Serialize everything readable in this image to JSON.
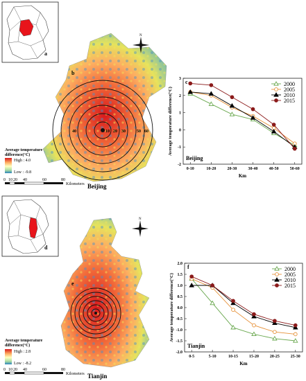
{
  "panels": {
    "a": "a",
    "b": "b",
    "c": "c",
    "d": "d",
    "e": "e",
    "f": "f"
  },
  "maps": {
    "beijing": {
      "city": "Beijing",
      "legend_title_line1": "Average temperature",
      "legend_title_line2": "difference(°C)",
      "high_label": "High : 4.0",
      "low_label": "Low : -9.8",
      "ring_labels": [
        "10",
        "20",
        "30",
        "40",
        "50",
        "60"
      ],
      "scale_ticks": [
        "0",
        "10",
        "20",
        "40",
        "60",
        "80"
      ],
      "scale_unit": "Kilometers",
      "colors": {
        "high": "#d7191c",
        "mid": "#fdae61",
        "low": "#2c7bb6"
      }
    },
    "tianjin": {
      "city": "Tianjin",
      "legend_title_line1": "Average temperature",
      "legend_title_line2": "difference(°C)",
      "high_label": "High : 2.8",
      "low_label": "Low : -8.2",
      "scale_ticks": [
        "0",
        "10",
        "20",
        "40",
        "60",
        "80"
      ],
      "scale_unit": "Kilometers"
    },
    "north_arrow_label": "N",
    "locator_fill": "#e8141b"
  },
  "chart_data": [
    {
      "type": "line",
      "panel": "c",
      "title": "Beijing",
      "xlabel": "Km",
      "ylabel": "Average temperature difference(°C)",
      "categories": [
        "0-10",
        "10-20",
        "20-30",
        "30-40",
        "40-50",
        "50-60"
      ],
      "ylim": [
        -2,
        3
      ],
      "yticks": [
        "-2",
        "-1",
        "0",
        "1",
        "2",
        "3"
      ],
      "legend_position": "top-right",
      "series": [
        {
          "name": "2000",
          "values": [
            2.1,
            1.5,
            0.9,
            0.6,
            -0.2,
            -0.9
          ],
          "color": "#6aa84f",
          "marker": "triangle-open"
        },
        {
          "name": "2005",
          "values": [
            2.2,
            2.0,
            1.3,
            0.8,
            0.1,
            -0.8
          ],
          "color": "#e69138",
          "marker": "circle-open"
        },
        {
          "name": "2010",
          "values": [
            2.2,
            2.1,
            1.4,
            0.7,
            -0.1,
            -1.0
          ],
          "color": "#000000",
          "marker": "triangle-filled"
        },
        {
          "name": "2015",
          "values": [
            2.7,
            2.6,
            1.9,
            1.2,
            0.3,
            -1.1
          ],
          "color": "#8b1a1a",
          "marker": "circle-filled"
        }
      ]
    },
    {
      "type": "line",
      "panel": "f",
      "title": "Tianjin",
      "xlabel": "Km",
      "ylabel": "Average temperature difference(°C)",
      "categories": [
        "0-5",
        "5-10",
        "10-15",
        "15-20",
        "20-25",
        "25-30"
      ],
      "ylim": [
        -2.0,
        2.0
      ],
      "yticks": [
        "-2.0",
        "-1.5",
        "-1.0",
        "-0.5",
        "0.0",
        "0.5",
        "1.0",
        "1.5",
        "2.0"
      ],
      "legend_position": "top-right",
      "series": [
        {
          "name": "2000",
          "values": [
            1.3,
            0.2,
            -0.9,
            -1.2,
            -1.4,
            -1.5
          ],
          "color": "#6aa84f",
          "marker": "triangle-open"
        },
        {
          "name": "2005",
          "values": [
            1.3,
            0.9,
            -0.1,
            -0.8,
            -1.1,
            -1.2
          ],
          "color": "#e69138",
          "marker": "circle-open"
        },
        {
          "name": "2010",
          "values": [
            1.0,
            1.0,
            0.2,
            -0.4,
            -0.7,
            -0.9
          ],
          "color": "#000000",
          "marker": "triangle-filled"
        },
        {
          "name": "2015",
          "values": [
            1.4,
            1.0,
            0.3,
            -0.3,
            -0.6,
            -0.8
          ],
          "color": "#8b1a1a",
          "marker": "circle-filled"
        }
      ]
    }
  ]
}
